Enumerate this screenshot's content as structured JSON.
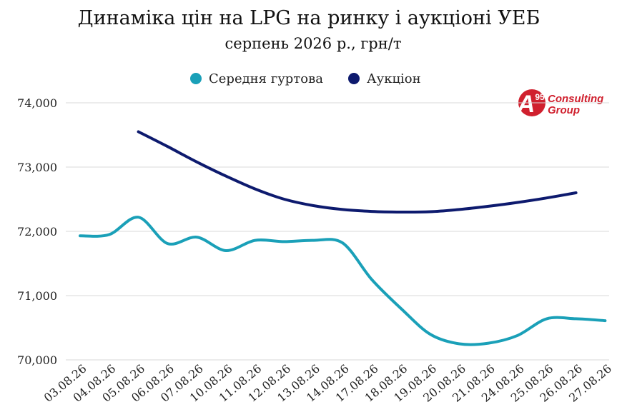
{
  "chart_data": {
    "type": "line",
    "title": "Динаміка цін на LPG на ринку і аукціоні УЕБ",
    "subtitle": "серпень 2026 р., грн/т",
    "ylim": [
      70000,
      74000
    ],
    "yticks": [
      "74,000",
      "73,000",
      "72,000",
      "71,000",
      "70,000"
    ],
    "ytick_values": [
      74000,
      73000,
      72000,
      71000,
      70000
    ],
    "grid": true,
    "legend_position": "top-center",
    "categories": [
      "03.08.26",
      "04.08.26",
      "05.08.26",
      "06.08.26",
      "07.08.26",
      "10.08.26",
      "11.08.26",
      "12.08.26",
      "13.08.26",
      "14.08.26",
      "17.08.26",
      "18.08.26",
      "19.08.26",
      "20.08.26",
      "21.08.26",
      "24.08.26",
      "25.08.26",
      "26.08.26",
      "27.08.26"
    ],
    "series": [
      {
        "name": "Середня гуртова",
        "color": "#1aa0b8",
        "values": [
          71930,
          71950,
          72220,
          71810,
          71910,
          71700,
          71860,
          71840,
          71860,
          71820,
          71250,
          70800,
          70400,
          70250,
          70260,
          70380,
          70640,
          70640,
          70610
        ]
      },
      {
        "name": "Аукціон",
        "color": "#0d1a6e",
        "values": [
          null,
          null,
          73550,
          null,
          null,
          null,
          null,
          null,
          null,
          null,
          null,
          null,
          null,
          null,
          null,
          null,
          null,
          72600,
          null
        ],
        "curve_points": [
          [
            2,
            73550
          ],
          [
            3,
            73320
          ],
          [
            4,
            73080
          ],
          [
            5,
            72860
          ],
          [
            6,
            72660
          ],
          [
            7,
            72500
          ],
          [
            8,
            72400
          ],
          [
            9,
            72340
          ],
          [
            10,
            72310
          ],
          [
            11,
            72300
          ],
          [
            12,
            72305
          ],
          [
            13,
            72340
          ],
          [
            14,
            72390
          ],
          [
            15,
            72450
          ],
          [
            16,
            72520
          ],
          [
            17,
            72600
          ]
        ]
      }
    ]
  },
  "logo": {
    "mark": "A",
    "superscript": "95",
    "line1": "Consulting",
    "line2": "Group",
    "color": "#d0202e"
  }
}
